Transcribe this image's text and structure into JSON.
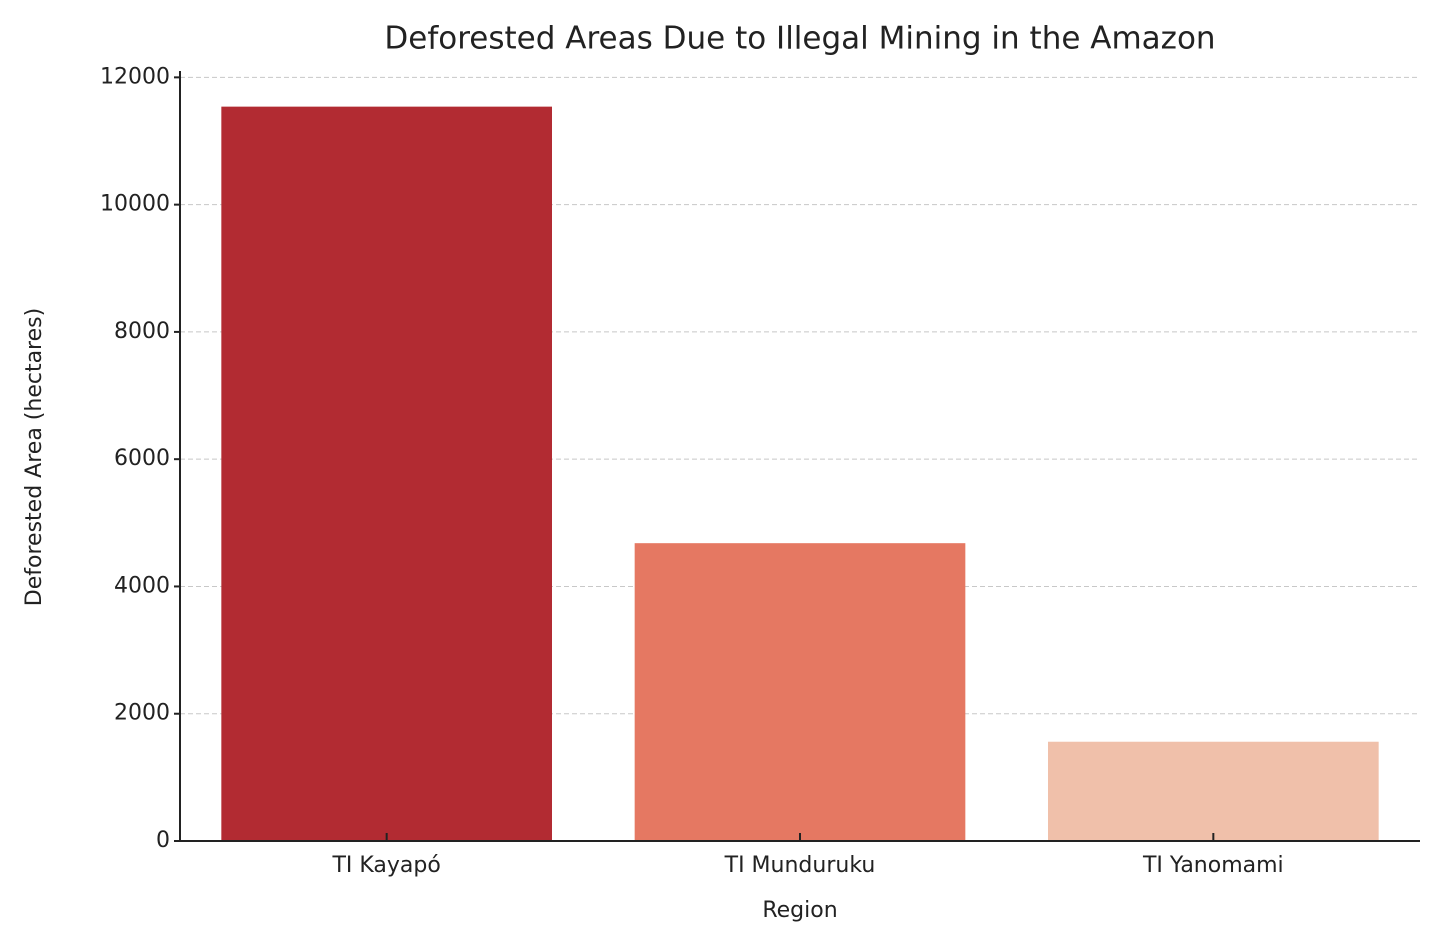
{
  "chart_data": {
    "type": "bar",
    "title": "Deforested Areas Due to Illegal Mining in the Amazon",
    "x_label": "Region",
    "y_label": "Deforested Area (hectares)",
    "categories": [
      "TI Kayapó",
      "TI Munduruku",
      "TI Yanomami"
    ],
    "values": [
      11540,
      4680,
      1560
    ],
    "colors": [
      "#b22b32",
      "#e57862",
      "#f0c0aa"
    ],
    "ylim": [
      0,
      12100
    ],
    "yticks": [
      0,
      2000,
      4000,
      6000,
      8000,
      10000,
      12000
    ],
    "grid": true
  }
}
